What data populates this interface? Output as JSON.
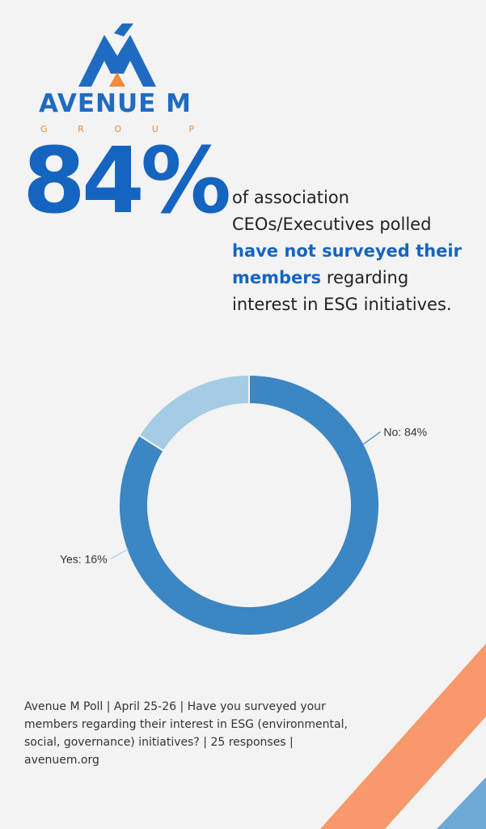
{
  "brand": {
    "name": "AVENUE M",
    "sub_letters": [
      "G",
      "R",
      "O",
      "U",
      "P"
    ],
    "blue": "#1f6bc1",
    "orange": "#f28a3a"
  },
  "headline": {
    "stat": "84%",
    "line1": "of association CEOs/Executives polled ",
    "highlight": "have not surveyed their members",
    "line2": " regarding interest in ESG initiatives."
  },
  "chart_data": {
    "type": "pie",
    "categories": [
      "No",
      "Yes"
    ],
    "values": [
      84,
      16
    ],
    "labels": [
      "No: 84%",
      "Yes: 16%"
    ],
    "colors": [
      "#3b86c3",
      "#a5cce4"
    ]
  },
  "footer": {
    "source": "Avenue M Poll | April 25-26 | Have you surveyed your members regarding their interest in ESG (environmental, social, governance) initiatives? | 25 responses | avenuem.org"
  },
  "decor": {
    "stripe_colors": [
      "#f9986a",
      "#6ea9d6"
    ]
  }
}
